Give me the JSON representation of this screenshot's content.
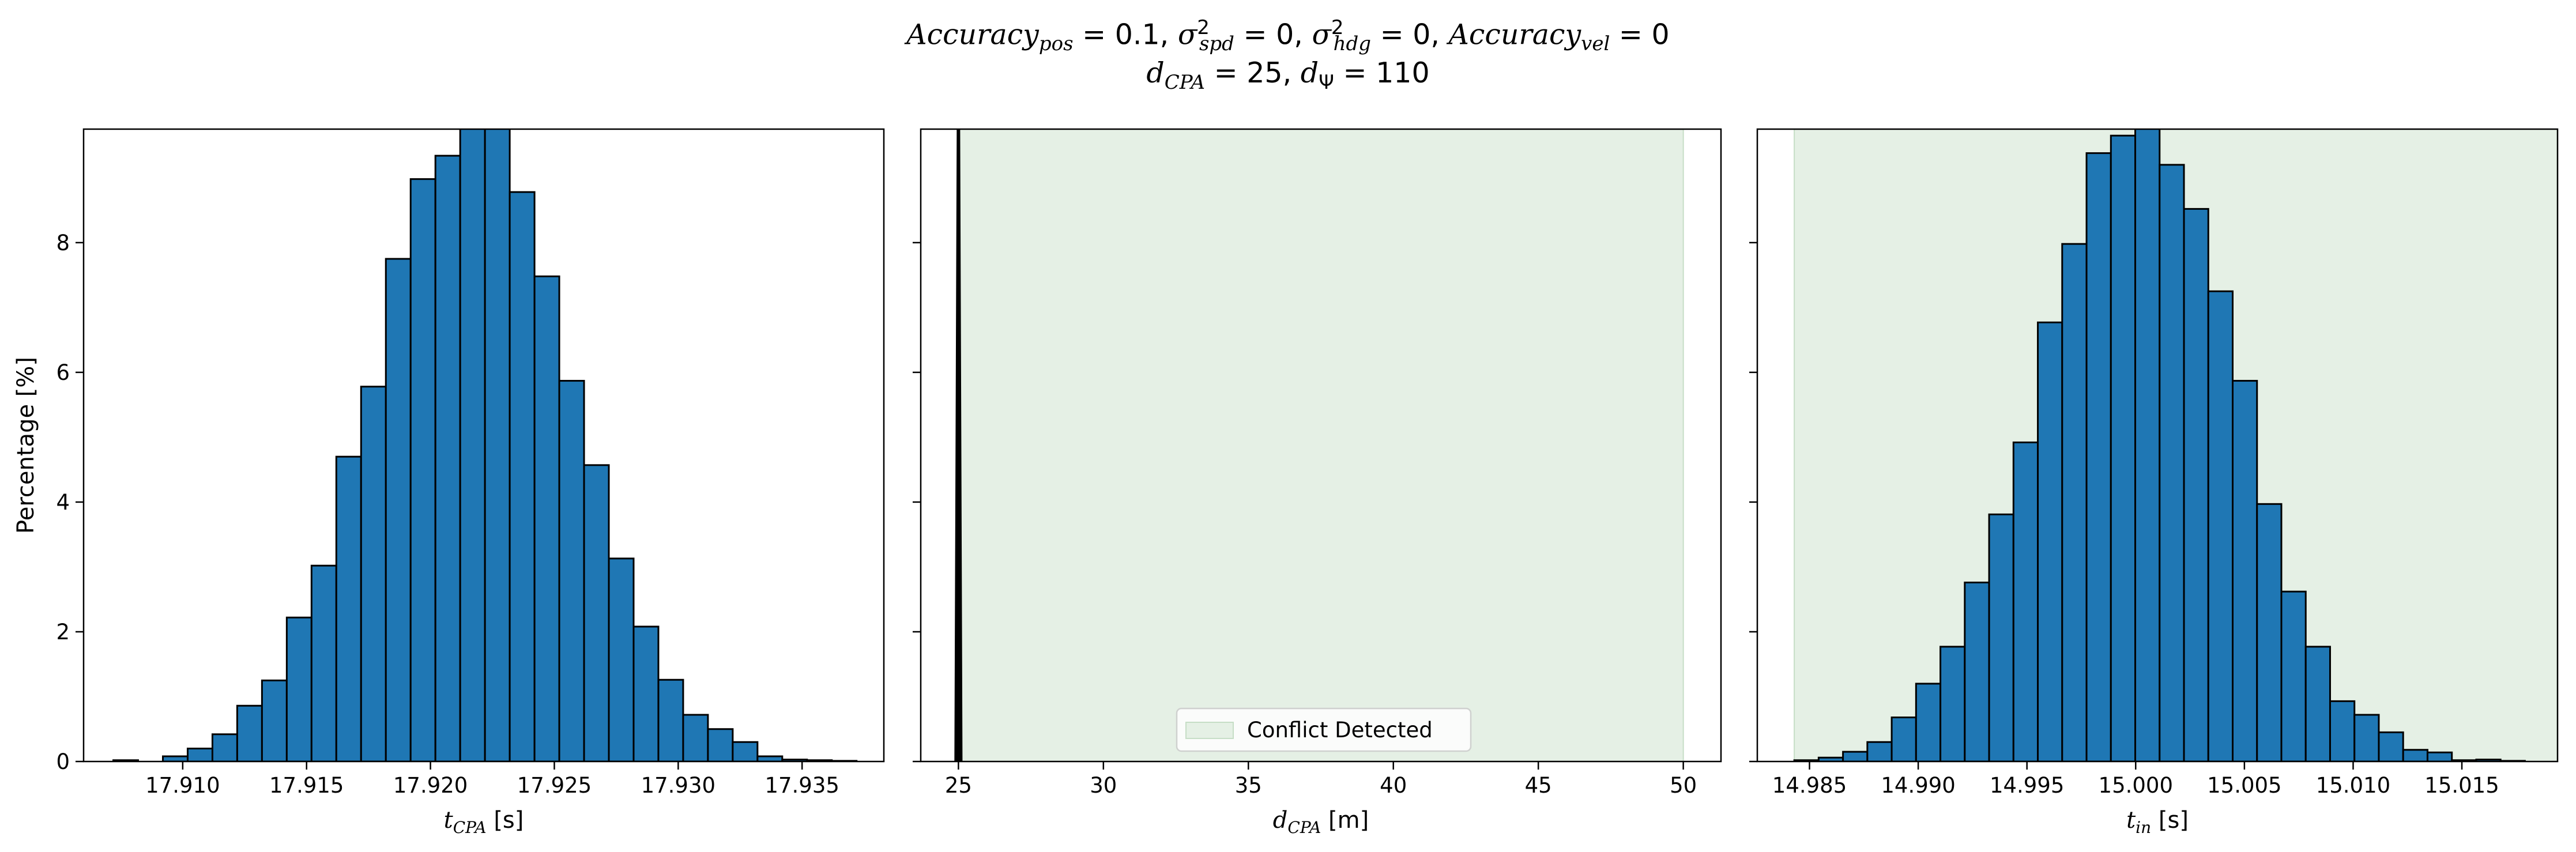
{
  "title": {
    "line1_parts": {
      "acc_pos": "Accuracy",
      "acc_pos_sub": "pos",
      "acc_pos_val": " = 0.1, ",
      "spd": "σ",
      "spd_sup": "2",
      "spd_sub": "spd",
      "spd_val": " = 0, ",
      "hdg": "σ",
      "hdg_sup": "2",
      "hdg_sub": "hdg",
      "hdg_val": " = 0, ",
      "acc_vel": "Accuracy",
      "acc_vel_sub": "vel",
      "acc_vel_val": " = 0"
    },
    "line2_parts": {
      "dcpa": "d",
      "dcpa_sub": "CPA",
      "dcpa_val": " = 25, ",
      "dpsi": "d",
      "dpsi_sub": "Ψ",
      "dpsi_val": " = 110"
    }
  },
  "colors": {
    "bar_fill": "#1f77b4",
    "bar_edge": "#000000",
    "conflict_fill": "#e5f0e5",
    "conflict_edge": "#c6dec6",
    "axis": "#000000"
  },
  "chart_data": [
    {
      "type": "bar",
      "subtype": "histogram",
      "xlabel": "t",
      "xlabel_sub": "CPA",
      "xlabel_unit": " [s]",
      "ylabel": "Percentage [%]",
      "xlim": [
        17.906,
        17.9383
      ],
      "ylim": [
        0,
        9.75
      ],
      "xticks": [
        17.91,
        17.915,
        17.92,
        17.925,
        17.93,
        17.935
      ],
      "xtick_labels": [
        "17.910",
        "17.915",
        "17.920",
        "17.925",
        "17.930",
        "17.935"
      ],
      "yticks": [
        0,
        2,
        4,
        6,
        8
      ],
      "ytick_labels": [
        "0",
        "2",
        "4",
        "6",
        "8"
      ],
      "bin_start": 17.9072,
      "bin_width": 0.001,
      "values": [
        0.02,
        0.0,
        0.08,
        0.2,
        0.42,
        0.86,
        1.25,
        2.22,
        3.02,
        4.7,
        5.78,
        7.75,
        8.98,
        9.34,
        9.78,
        9.78,
        8.78,
        7.48,
        5.87,
        4.57,
        3.13,
        2.08,
        1.26,
        0.72,
        0.5,
        0.3,
        0.08,
        0.03,
        0.02,
        0.01
      ]
    },
    {
      "type": "bar",
      "subtype": "histogram",
      "xlabel": "d",
      "xlabel_sub": "CPA",
      "xlabel_unit": " [m]",
      "xlim": [
        23.7,
        51.3
      ],
      "ylim": [
        0,
        9.75
      ],
      "xticks": [
        25,
        30,
        35,
        40,
        45,
        50
      ],
      "xtick_labels": [
        "25",
        "30",
        "35",
        "40",
        "45",
        "50"
      ],
      "yticks": [
        0,
        2,
        4,
        6,
        8
      ],
      "conflict_region": [
        25,
        50
      ],
      "legend": {
        "label": "Conflict Detected",
        "loc": "lower center"
      },
      "spike_center": 25.0,
      "spike_halfwidth": 0.12
    },
    {
      "type": "bar",
      "subtype": "histogram",
      "xlabel": "t",
      "xlabel_sub": "in",
      "xlabel_unit": " [s]",
      "xlim": [
        14.9826,
        15.0194
      ],
      "ylim": [
        0,
        9.75
      ],
      "xticks": [
        14.985,
        14.99,
        14.995,
        15.0,
        15.005,
        15.01,
        15.015
      ],
      "xtick_labels": [
        "14.985",
        "14.990",
        "14.995",
        "15.000",
        "15.005",
        "15.010",
        "15.015"
      ],
      "yticks": [
        0,
        2,
        4,
        6,
        8
      ],
      "conflict_region": [
        14.9843,
        15.0194
      ],
      "bin_start": 14.9843,
      "bin_width": 0.00112,
      "values": [
        0.02,
        0.06,
        0.15,
        0.3,
        0.68,
        1.2,
        1.77,
        2.76,
        3.81,
        4.92,
        6.77,
        7.98,
        9.38,
        9.65,
        9.78,
        9.2,
        8.52,
        7.25,
        5.87,
        3.97,
        2.62,
        1.77,
        0.93,
        0.72,
        0.45,
        0.18,
        0.14,
        0.02,
        0.03,
        0.01
      ]
    }
  ]
}
